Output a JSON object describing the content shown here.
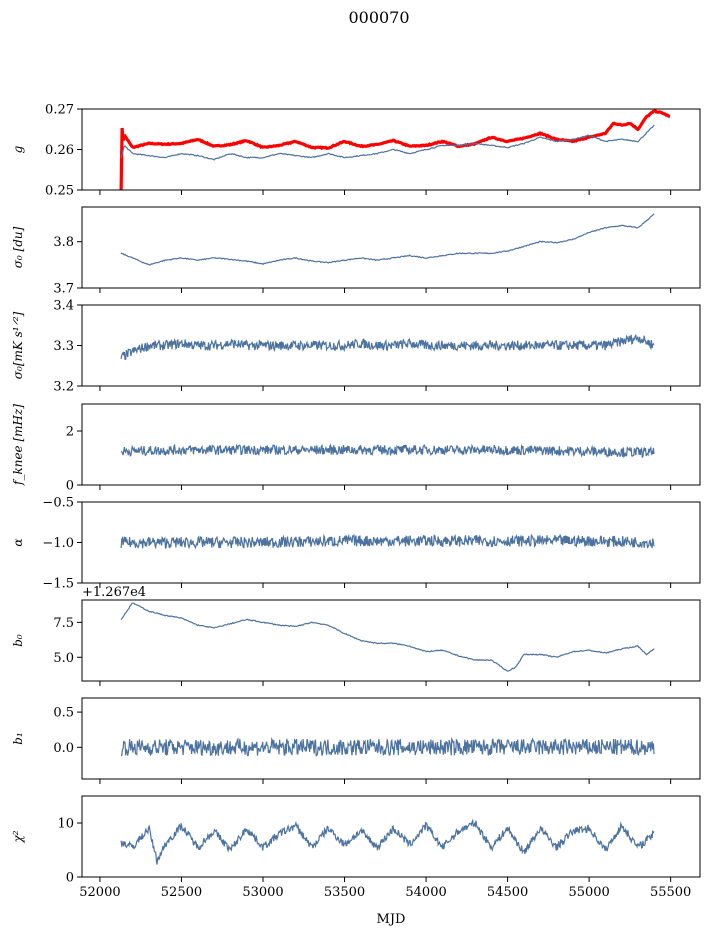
{
  "figure_title": "000070",
  "x_axis_label": "MJD",
  "x_ticks": [
    52000,
    52500,
    53000,
    53500,
    54000,
    54500,
    55000,
    55500
  ],
  "chart_data": [
    {
      "type": "line",
      "ylabel": "g",
      "ylim": [
        0.25,
        0.27
      ],
      "ytick_labels": [
        "0.25",
        "0.26",
        "0.27"
      ],
      "yticks": [
        0.25,
        0.26,
        0.27
      ],
      "series": [
        {
          "color": "#ff0000",
          "x": [
            52130,
            52135,
            52140,
            52150,
            52200,
            52300,
            52400,
            52500,
            52600,
            52700,
            52800,
            52900,
            53000,
            53100,
            53200,
            53300,
            53400,
            53500,
            53600,
            53700,
            53800,
            53900,
            54000,
            54100,
            54200,
            54300,
            54400,
            54500,
            54600,
            54700,
            54800,
            54900,
            55000,
            55100,
            55150,
            55200,
            55250,
            55300,
            55350,
            55400,
            55450,
            55500
          ],
          "values": [
            0.25,
            0.266,
            0.262,
            0.2635,
            0.2605,
            0.2615,
            0.2613,
            0.2615,
            0.2625,
            0.2608,
            0.2612,
            0.2622,
            0.2605,
            0.261,
            0.262,
            0.2605,
            0.2604,
            0.262,
            0.2608,
            0.2612,
            0.2622,
            0.2608,
            0.261,
            0.262,
            0.2608,
            0.2614,
            0.263,
            0.262,
            0.2628,
            0.264,
            0.2625,
            0.262,
            0.263,
            0.264,
            0.2665,
            0.266,
            0.2665,
            0.265,
            0.268,
            0.2695,
            0.269,
            0.268
          ]
        },
        {
          "color": "#4c72a0",
          "x": [
            52130,
            52150,
            52200,
            52300,
            52400,
            52500,
            52600,
            52700,
            52800,
            52900,
            53000,
            53100,
            53200,
            53300,
            53400,
            53500,
            53600,
            53700,
            53800,
            53900,
            54000,
            54100,
            54200,
            54300,
            54400,
            54500,
            54600,
            54700,
            54800,
            54900,
            55000,
            55100,
            55200,
            55300,
            55400
          ],
          "values": [
            0.258,
            0.261,
            0.259,
            0.2585,
            0.258,
            0.259,
            0.2585,
            0.2575,
            0.259,
            0.258,
            0.258,
            0.259,
            0.2585,
            0.258,
            0.259,
            0.258,
            0.2585,
            0.259,
            0.26,
            0.259,
            0.26,
            0.261,
            0.261,
            0.2615,
            0.261,
            0.2605,
            0.2615,
            0.263,
            0.262,
            0.2625,
            0.2635,
            0.262,
            0.2625,
            0.262,
            0.266
          ]
        }
      ]
    },
    {
      "type": "line",
      "ylabel": "σ₀ [du]",
      "ylim": [
        3.7,
        3.875
      ],
      "ytick_labels": [
        "3.7",
        "3.8"
      ],
      "yticks": [
        3.7,
        3.8
      ],
      "series": [
        {
          "color": "#4c72a0",
          "x": [
            52130,
            52200,
            52300,
            52400,
            52500,
            52600,
            52700,
            52800,
            52900,
            53000,
            53100,
            53200,
            53300,
            53400,
            53500,
            53600,
            53700,
            53800,
            53900,
            54000,
            54100,
            54200,
            54300,
            54400,
            54500,
            54600,
            54700,
            54800,
            54900,
            55000,
            55100,
            55200,
            55300,
            55400
          ],
          "values": [
            3.775,
            3.765,
            3.75,
            3.76,
            3.765,
            3.76,
            3.765,
            3.762,
            3.758,
            3.752,
            3.76,
            3.765,
            3.758,
            3.755,
            3.76,
            3.765,
            3.76,
            3.765,
            3.77,
            3.765,
            3.77,
            3.775,
            3.775,
            3.775,
            3.78,
            3.79,
            3.8,
            3.798,
            3.805,
            3.82,
            3.83,
            3.835,
            3.83,
            3.86
          ]
        }
      ]
    },
    {
      "type": "line",
      "ylabel": "σ₀[mK s¹ᐟ²]",
      "ylim": [
        3.2,
        3.4
      ],
      "ytick_labels": [
        "3.2",
        "3.3",
        "3.4"
      ],
      "yticks": [
        3.2,
        3.3,
        3.4
      ],
      "noise": 0.012,
      "series": [
        {
          "color": "#4c72a0",
          "x": [
            52130,
            52200,
            52300,
            52400,
            52500,
            52600,
            52700,
            52800,
            52900,
            53000,
            53100,
            53200,
            53300,
            53400,
            53500,
            53600,
            53700,
            53800,
            53900,
            54000,
            54100,
            54200,
            54300,
            54400,
            54500,
            54600,
            54700,
            54800,
            54900,
            55000,
            55100,
            55200,
            55300,
            55400
          ],
          "values": [
            3.27,
            3.285,
            3.3,
            3.3,
            3.305,
            3.3,
            3.3,
            3.305,
            3.3,
            3.3,
            3.3,
            3.3,
            3.3,
            3.3,
            3.3,
            3.305,
            3.3,
            3.3,
            3.305,
            3.3,
            3.3,
            3.3,
            3.3,
            3.3,
            3.3,
            3.3,
            3.3,
            3.3,
            3.3,
            3.3,
            3.3,
            3.31,
            3.32,
            3.3
          ]
        }
      ]
    },
    {
      "type": "line",
      "ylabel": "f_knee [mHz]",
      "ylim": [
        0,
        3
      ],
      "ytick_labels": [
        "0",
        "2"
      ],
      "yticks": [
        0,
        2
      ],
      "noise": 0.18,
      "series": [
        {
          "color": "#4c72a0",
          "x": [
            52130,
            52500,
            53000,
            53500,
            54000,
            54500,
            55000,
            55400
          ],
          "values": [
            1.25,
            1.3,
            1.3,
            1.3,
            1.3,
            1.3,
            1.25,
            1.2
          ]
        }
      ]
    },
    {
      "type": "line",
      "ylabel": "α",
      "ylim": [
        -1.5,
        -0.5
      ],
      "ytick_labels": [
        "−1.5",
        "−1.0",
        "−0.5"
      ],
      "yticks": [
        -1.5,
        -1.0,
        -0.5
      ],
      "noise": 0.07,
      "series": [
        {
          "color": "#4c72a0",
          "x": [
            52130,
            52500,
            53000,
            53500,
            54000,
            54500,
            55000,
            55400
          ],
          "values": [
            -1.0,
            -1.0,
            -1.0,
            -0.98,
            -0.98,
            -0.98,
            -0.98,
            -1.0
          ]
        }
      ]
    },
    {
      "type": "line",
      "ylabel": "b₀",
      "offset_label": "+1.267e4",
      "ylim": [
        3.3,
        9.1
      ],
      "ytick_labels": [
        "5.0",
        "7.5"
      ],
      "yticks": [
        5.0,
        7.5
      ],
      "series": [
        {
          "color": "#4c72a0",
          "x": [
            52130,
            52200,
            52300,
            52400,
            52500,
            52600,
            52700,
            52800,
            52900,
            53000,
            53100,
            53200,
            53300,
            53400,
            53500,
            53600,
            53700,
            53800,
            53900,
            54000,
            54100,
            54200,
            54300,
            54400,
            54450,
            54500,
            54550,
            54600,
            54700,
            54800,
            54900,
            55000,
            55100,
            55200,
            55300,
            55350,
            55400
          ],
          "values": [
            7.7,
            8.9,
            8.3,
            8.0,
            7.8,
            7.3,
            7.1,
            7.4,
            7.7,
            7.5,
            7.3,
            7.2,
            7.5,
            7.3,
            6.7,
            6.2,
            6.0,
            6.0,
            5.8,
            5.4,
            5.5,
            5.1,
            4.8,
            4.8,
            4.4,
            4.0,
            4.3,
            5.2,
            5.2,
            5.0,
            5.4,
            5.5,
            5.3,
            5.6,
            5.8,
            5.2,
            5.6
          ]
        }
      ]
    },
    {
      "type": "line",
      "ylabel": "b₁",
      "ylim": [
        -0.45,
        0.7
      ],
      "ytick_labels": [
        "0.0",
        "0.5"
      ],
      "yticks": [
        0.0,
        0.5
      ],
      "noise": 0.12,
      "series": [
        {
          "color": "#4c72a0",
          "x": [
            52130,
            52500,
            53000,
            53500,
            54000,
            54500,
            55000,
            55400
          ],
          "values": [
            0.0,
            0.0,
            0.0,
            0.0,
            0.0,
            0.0,
            0.0,
            0.0
          ]
        }
      ]
    },
    {
      "type": "line",
      "ylabel": "χ²",
      "ylim": [
        0,
        15
      ],
      "ytick_labels": [
        "0",
        "10"
      ],
      "yticks": [
        0,
        10
      ],
      "noise": 0.7,
      "series": [
        {
          "color": "#4c72a0",
          "x": [
            52130,
            52200,
            52300,
            52350,
            52400,
            52500,
            52600,
            52700,
            52800,
            52900,
            53000,
            53100,
            53200,
            53300,
            53400,
            53500,
            53600,
            53700,
            53800,
            53900,
            54000,
            54100,
            54200,
            54300,
            54400,
            54500,
            54600,
            54700,
            54800,
            54900,
            55000,
            55100,
            55200,
            55300,
            55400
          ],
          "values": [
            6.5,
            5.5,
            9.0,
            3.0,
            6.0,
            9.5,
            5.5,
            8.5,
            5.0,
            9.0,
            5.5,
            8.0,
            9.5,
            5.5,
            9.0,
            6.0,
            8.5,
            5.5,
            9.0,
            6.0,
            9.5,
            5.5,
            8.5,
            10.0,
            5.5,
            9.0,
            4.5,
            9.0,
            5.5,
            8.5,
            9.0,
            5.0,
            9.5,
            5.5,
            8.0
          ]
        }
      ]
    }
  ]
}
